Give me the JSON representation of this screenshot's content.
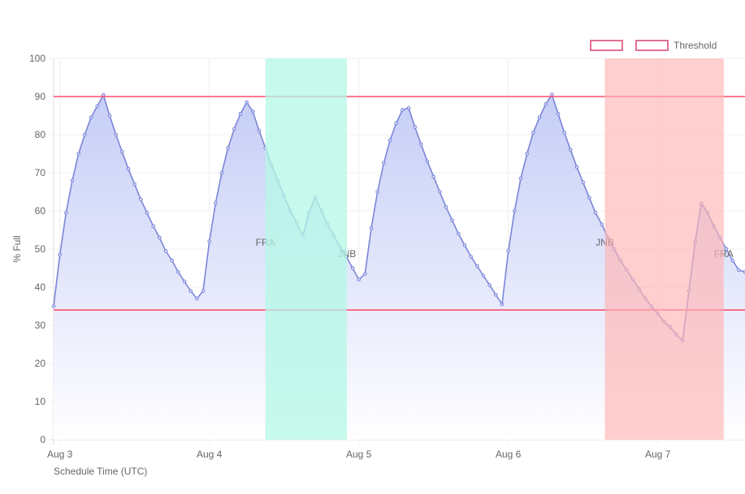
{
  "chart_data": {
    "type": "line",
    "xlabel": "Schedule Time (UTC)",
    "ylabel": "% Full",
    "ylim": [
      0,
      100
    ],
    "yticks": [
      "0",
      "10",
      "20",
      "30",
      "40",
      "50",
      "60",
      "70",
      "80",
      "90",
      "100"
    ],
    "xticks": [
      {
        "label": "Aug 3",
        "time": "Aug 3 00:00"
      },
      {
        "label": "Aug 4",
        "time": "Aug 4 00:00"
      },
      {
        "label": "Aug 5",
        "time": "Aug 5 00:00"
      },
      {
        "label": "Aug 6",
        "time": "Aug 6 00:00"
      },
      {
        "label": "Aug 7",
        "time": "Aug 7 00:00"
      }
    ],
    "grid": true,
    "legend": {
      "placement": "top-right",
      "entries": [
        "",
        "Threshold"
      ]
    },
    "colors": {
      "line": "#7b86d8",
      "fill_top": "#c3cbf6",
      "threshold": "#ff4d6d",
      "band_teal": "#b4f8e6",
      "band_red": "#ffb3b3",
      "legend_box": "#e0708f"
    },
    "series": [
      {
        "x_start": "Aug 2 23:00",
        "x_step_hours": 1,
        "values": [
          35,
          48.5,
          59.5,
          68,
          75,
          80,
          84.5,
          87.5,
          90.4,
          85,
          80,
          75.5,
          71,
          67,
          63,
          59.5,
          56,
          53,
          49.5,
          47,
          44,
          41.5,
          39,
          37,
          39,
          52,
          62,
          70,
          76.5,
          81.5,
          85.5,
          88.5,
          86,
          81,
          76.5,
          72,
          68,
          64,
          60,
          57,
          53.5,
          59.5,
          63.5,
          60,
          56.5,
          53.5,
          50.5,
          48,
          45,
          42,
          43.5,
          55.5,
          65,
          72.5,
          78.5,
          83,
          86.5,
          87,
          82,
          77.5,
          73,
          69,
          65,
          61,
          57.5,
          54,
          51,
          48,
          45.5,
          43,
          40.5,
          38,
          35.5,
          49.5,
          60,
          68.5,
          75,
          80.5,
          84.5,
          88,
          90.5,
          85.5,
          80.5,
          76,
          71.5,
          67.5,
          63.5,
          59.5,
          56.5,
          53,
          50,
          47,
          44.5,
          42,
          39.5,
          37,
          35,
          33,
          31,
          29.5,
          27.5,
          26,
          39,
          52,
          62,
          59.5,
          56,
          53,
          50,
          47,
          44.5,
          44
        ]
      }
    ],
    "thresholds": [
      {
        "name": "Threshold",
        "value": 90
      },
      {
        "name": "Threshold",
        "value": 34
      }
    ],
    "bands": [
      {
        "start": "Aug 4 09:00",
        "end": "Aug 4 22:05",
        "color": "teal",
        "start_label": "FRA",
        "end_label": "JNB"
      },
      {
        "start": "Aug 6 15:30",
        "end": "Aug 7 10:35",
        "color": "red",
        "start_label": "JNB",
        "end_label": "FRA"
      }
    ]
  }
}
